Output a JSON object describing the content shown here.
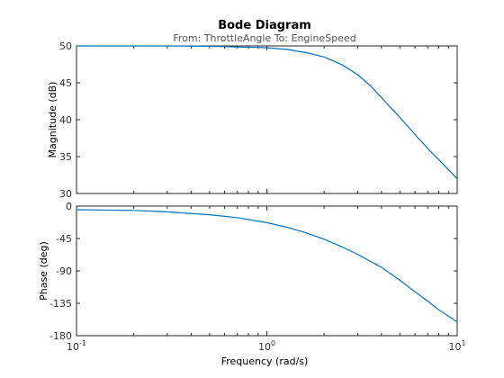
{
  "chart_data": {
    "type": "line",
    "title": "Bode Diagram",
    "subtitle": "From: ThrottleAngle  To: EngineSpeed",
    "xlabel": "Frequency  (rad/s)",
    "xscale": "log",
    "xlim": [
      0.1,
      10
    ],
    "x_ticks": [
      {
        "value": 0.1,
        "base": "10",
        "exp": "-1"
      },
      {
        "value": 1,
        "base": "10",
        "exp": "0"
      },
      {
        "value": 10,
        "base": "10",
        "exp": "1"
      }
    ],
    "line_color": "#0072bd",
    "panels": [
      {
        "name": "magnitude",
        "ylabel": "Magnitude (dB)",
        "ylim": [
          30,
          50
        ],
        "yticks": [
          "30",
          "35",
          "40",
          "45",
          "50"
        ],
        "series": [
          {
            "x": [
              0.1,
              0.2,
              0.3,
              0.5,
              0.7,
              1.0,
              1.3,
              1.6,
              2.0,
              2.5,
              3.0,
              3.5,
              4.0,
              5.0,
              6.0,
              7.0,
              8.0,
              10.0
            ],
            "values": [
              50.0,
              50.0,
              50.0,
              49.95,
              49.85,
              49.75,
              49.5,
              49.1,
              48.5,
              47.4,
              46.1,
              44.6,
              43.0,
              40.3,
              38.0,
              36.1,
              34.6,
              32.0
            ]
          }
        ]
      },
      {
        "name": "phase",
        "ylabel": "Phase (deg)",
        "ylim": [
          -180,
          0
        ],
        "yticks": [
          "-180",
          "-135",
          "-90",
          "-45",
          "0"
        ],
        "series": [
          {
            "x": [
              0.1,
              0.2,
              0.3,
              0.5,
              0.7,
              1.0,
              1.3,
              1.6,
              2.0,
              2.5,
              3.0,
              4.0,
              5.0,
              6.0,
              7.0,
              8.0,
              10.0
            ],
            "values": [
              -5,
              -6,
              -8,
              -12,
              -16,
              -23,
              -30,
              -37,
              -46,
              -57,
              -67,
              -85,
              -103,
              -119,
              -132,
              -144,
              -161
            ]
          }
        ]
      }
    ]
  }
}
